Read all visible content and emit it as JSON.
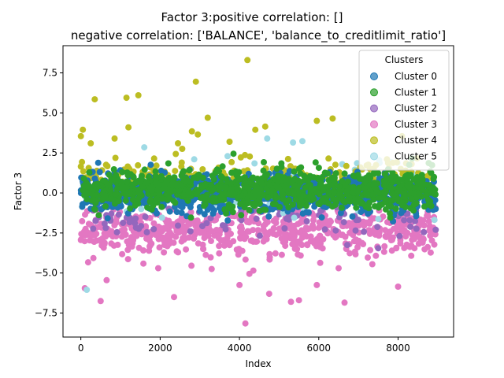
{
  "chart_data": {
    "type": "scatter",
    "title_line1": "Factor 3:positive correlation: []",
    "title_line2": "negative correlation: ['BALANCE', 'balance_to_creditlimit_ratio']",
    "xlabel": "Index",
    "ylabel": "Factor 3",
    "xlim": [
      -450,
      9400
    ],
    "ylim": [
      -9.0,
      9.2
    ],
    "xticks": [
      0,
      2000,
      4000,
      6000,
      8000
    ],
    "xtick_labels": [
      "0",
      "2000",
      "4000",
      "6000",
      "8000"
    ],
    "yticks": [
      -7.5,
      -5.0,
      -2.5,
      0.0,
      2.5,
      5.0,
      7.5
    ],
    "ytick_labels": [
      "−7.5",
      "−5.0",
      "−2.5",
      "0.0",
      "2.5",
      "5.0",
      "7.5"
    ],
    "grid": false,
    "legend_title": "Clusters",
    "legend_position": "top-right",
    "series": [
      {
        "name": "Cluster 0",
        "color": "#1f77b4"
      },
      {
        "name": "Cluster 1",
        "color": "#2ca02c"
      },
      {
        "name": "Cluster 2",
        "color": "#9467bd"
      },
      {
        "name": "Cluster 3",
        "color": "#e377c2"
      },
      {
        "name": "Cluster 4",
        "color": "#bcbd22"
      },
      {
        "name": "Cluster 5",
        "color": "#9edae5"
      }
    ],
    "n_points": 8950,
    "notable_points": [
      {
        "series": "Cluster 4",
        "x": 4200,
        "y": 8.3
      },
      {
        "series": "Cluster 4",
        "x": 2900,
        "y": 6.95
      },
      {
        "series": "Cluster 4",
        "x": 1450,
        "y": 6.1
      },
      {
        "series": "Cluster 4",
        "x": 1150,
        "y": 5.95
      },
      {
        "series": "Cluster 4",
        "x": 350,
        "y": 5.85
      },
      {
        "series": "Cluster 4",
        "x": 3200,
        "y": 4.7
      },
      {
        "series": "Cluster 4",
        "x": 6350,
        "y": 4.65
      },
      {
        "series": "Cluster 4",
        "x": 5950,
        "y": 4.5
      },
      {
        "series": "Cluster 4",
        "x": 4650,
        "y": 4.15
      },
      {
        "series": "Cluster 4",
        "x": 1200,
        "y": 4.1
      },
      {
        "series": "Cluster 4",
        "x": 50,
        "y": 3.95
      },
      {
        "series": "Cluster 4",
        "x": 4400,
        "y": 3.95
      },
      {
        "series": "Cluster 4",
        "x": 2800,
        "y": 3.85
      },
      {
        "series": "Cluster 4",
        "x": 8100,
        "y": 3.55
      },
      {
        "series": "Cluster 4",
        "x": 0,
        "y": 3.55
      },
      {
        "series": "Cluster 4",
        "x": 2950,
        "y": 3.65
      },
      {
        "series": "Cluster 4",
        "x": 850,
        "y": 3.4
      },
      {
        "series": "Cluster 4",
        "x": 3750,
        "y": 3.2
      },
      {
        "series": "Cluster 4",
        "x": 2450,
        "y": 3.1
      },
      {
        "series": "Cluster 4",
        "x": 250,
        "y": 3.1
      },
      {
        "series": "Cluster 5",
        "x": 5350,
        "y": 3.15
      },
      {
        "series": "Cluster 5",
        "x": 1600,
        "y": 2.85
      },
      {
        "series": "Cluster 5",
        "x": 3700,
        "y": 2.3
      },
      {
        "series": "Cluster 3",
        "x": 4150,
        "y": -8.15
      },
      {
        "series": "Cluster 3",
        "x": 6650,
        "y": -6.85
      },
      {
        "series": "Cluster 3",
        "x": 5300,
        "y": -6.8
      },
      {
        "series": "Cluster 3",
        "x": 500,
        "y": -6.75
      },
      {
        "series": "Cluster 3",
        "x": 5500,
        "y": -6.7
      },
      {
        "series": "Cluster 3",
        "x": 2350,
        "y": -6.5
      },
      {
        "series": "Cluster 3",
        "x": 4750,
        "y": -6.3
      },
      {
        "series": "Cluster 3",
        "x": 100,
        "y": -5.95
      },
      {
        "series": "Cluster 5",
        "x": 150,
        "y": -6.05
      },
      {
        "series": "Cluster 3",
        "x": 8000,
        "y": -5.85
      },
      {
        "series": "Cluster 3",
        "x": 5950,
        "y": -5.75
      },
      {
        "series": "Cluster 3",
        "x": 4000,
        "y": -5.75
      },
      {
        "series": "Cluster 3",
        "x": 650,
        "y": -5.45
      },
      {
        "series": "Cluster 3",
        "x": 4250,
        "y": -5.05
      },
      {
        "series": "Cluster 3",
        "x": 4350,
        "y": -4.85
      },
      {
        "series": "Cluster 3",
        "x": 3300,
        "y": -4.75
      },
      {
        "series": "Cluster 3",
        "x": 1950,
        "y": -4.7
      },
      {
        "series": "Cluster 3",
        "x": 6500,
        "y": -4.7
      },
      {
        "series": "Cluster 3",
        "x": 7350,
        "y": -4.45
      },
      {
        "series": "Cluster 2",
        "x": 8950,
        "y": -2.3
      },
      {
        "series": "Cluster 2",
        "x": 8650,
        "y": -2.45
      },
      {
        "series": "Cluster 2",
        "x": 7500,
        "y": -3.45
      }
    ]
  }
}
